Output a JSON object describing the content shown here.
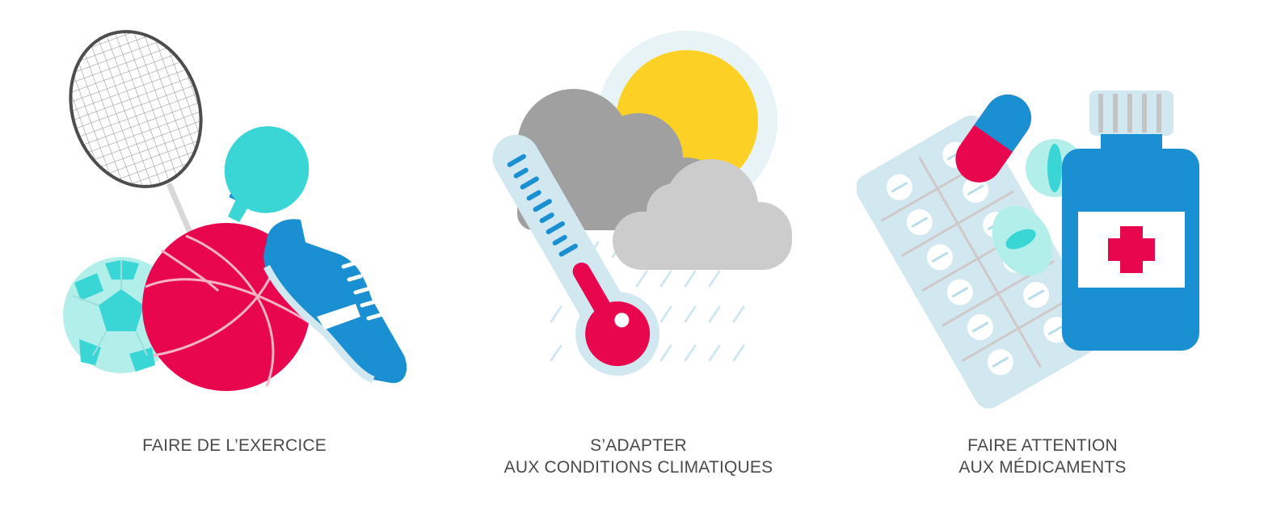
{
  "panels": [
    {
      "id": "exercise",
      "caption_lines": [
        "FAIRE DE L’EXERCICE"
      ],
      "icons": [
        "badminton-racket-icon",
        "ping-pong-paddle-icon",
        "soccer-ball-icon",
        "basketball-icon",
        "sneaker-icon"
      ]
    },
    {
      "id": "climate",
      "caption_lines": [
        "S’ADAPTER",
        "AUX CONDITIONS CLIMATIQUES"
      ],
      "icons": [
        "sun-icon",
        "dark-cloud-icon",
        "light-cloud-icon",
        "rain-icon",
        "thermometer-icon"
      ]
    },
    {
      "id": "medication",
      "caption_lines": [
        "FAIRE ATTENTION",
        "AUX MÉDICAMENTS"
      ],
      "icons": [
        "blister-pack-icon",
        "capsule-icon",
        "pill-icon",
        "medicine-bottle-icon"
      ]
    }
  ],
  "colors": {
    "pink": "#e8064f",
    "blue": "#1a8fd1",
    "teal": "#3ad6d6",
    "light_teal": "#b3efea",
    "pale_blue": "#d2e8f0",
    "yellow": "#fdd025",
    "gray_dark": "#a0a0a0",
    "gray_light": "#cccccc",
    "text": "#4a4a4a"
  }
}
